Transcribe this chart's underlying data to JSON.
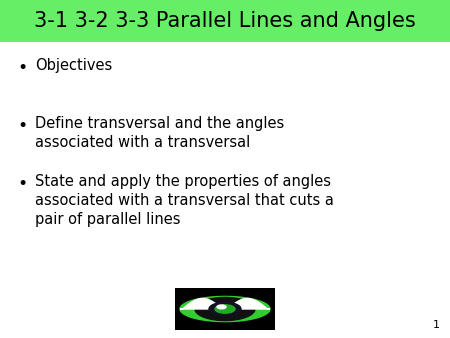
{
  "title": "3-1 3-2 3-3 Parallel Lines and Angles",
  "title_bg_color": "#66ee66",
  "slide_bg_color": "#ffffff",
  "title_fontsize": 15,
  "title_color": "#000000",
  "bullet_points": [
    "Objectives",
    "Define transversal and the angles\nassociated with a transversal",
    "State and apply the properties of angles\nassociated with a transversal that cuts a\npair of parallel lines"
  ],
  "bullet_color": "#000000",
  "bullet_fontsize": 10.5,
  "page_number": "1"
}
